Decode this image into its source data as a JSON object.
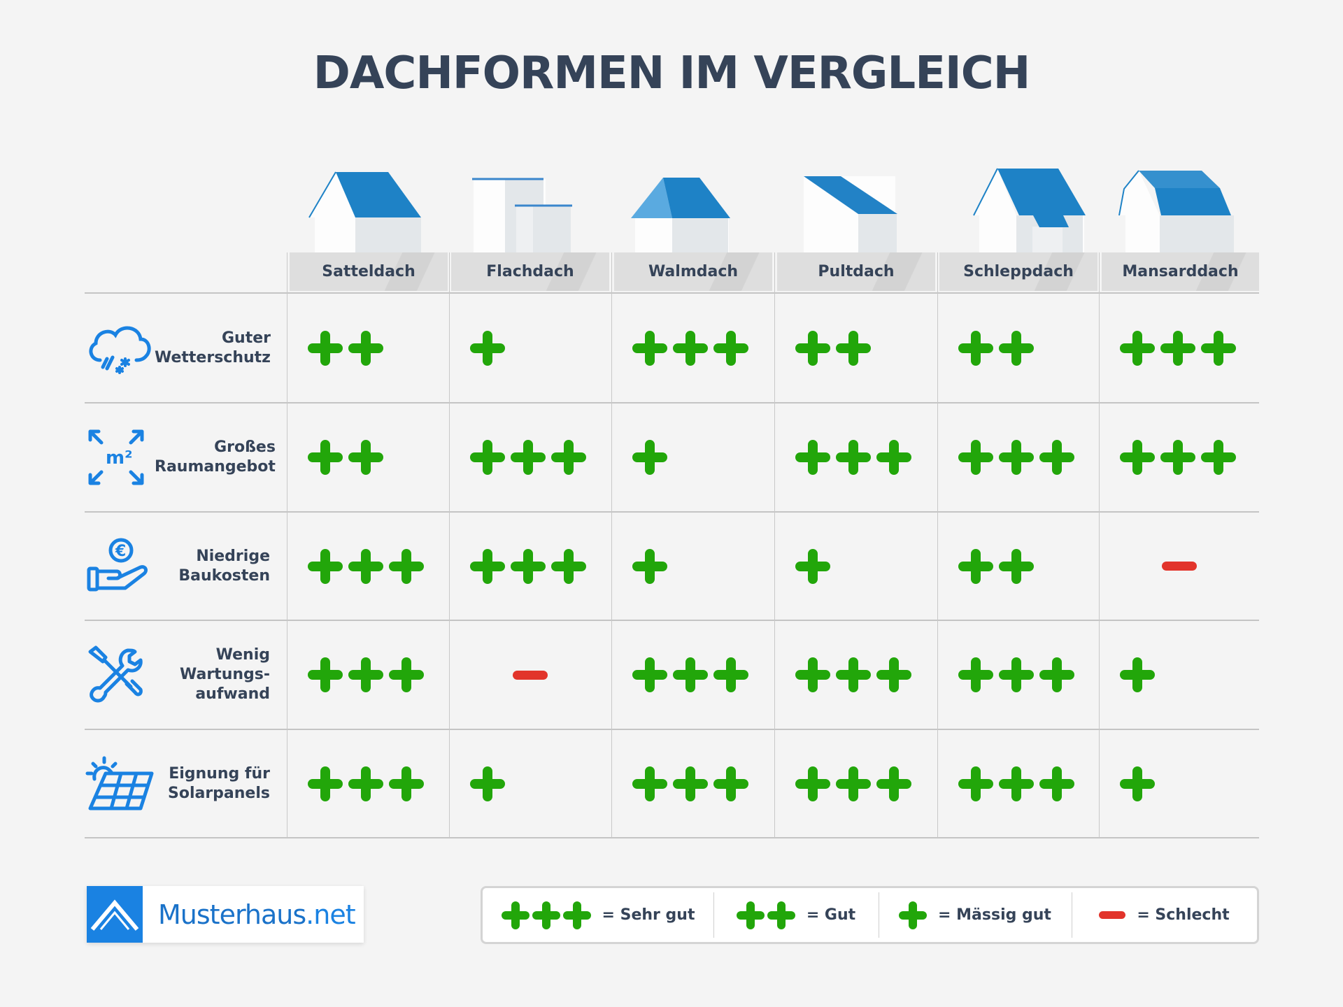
{
  "title": "DACHFORMEN IM VERGLEICH",
  "columns": [
    {
      "label": "Satteldach",
      "icon": "satteldach-house-icon"
    },
    {
      "label": "Flachdach",
      "icon": "flachdach-house-icon"
    },
    {
      "label": "Walmdach",
      "icon": "walmdach-house-icon"
    },
    {
      "label": "Pultdach",
      "icon": "pultdach-house-icon"
    },
    {
      "label": "Schleppdach",
      "icon": "schleppdach-house-icon"
    },
    {
      "label": "Mansarddach",
      "icon": "mansarddach-house-icon"
    }
  ],
  "rows": [
    {
      "label_line1": "Guter",
      "label_line2": "Wetterschutz",
      "label_line3": "",
      "icon": "weather-cloud-icon",
      "ratings": [
        2,
        1,
        3,
        2,
        2,
        3
      ]
    },
    {
      "label_line1": "Großes",
      "label_line2": "Raumangebot",
      "label_line3": "",
      "icon": "m2-expand-icon",
      "ratings": [
        2,
        3,
        1,
        3,
        3,
        3
      ]
    },
    {
      "label_line1": "Niedrige",
      "label_line2": "Baukosten",
      "label_line3": "",
      "icon": "hand-euro-icon",
      "ratings": [
        3,
        3,
        1,
        1,
        2,
        -1
      ]
    },
    {
      "label_line1": "Wenig",
      "label_line2": "Wartungs-",
      "label_line3": "aufwand",
      "icon": "tools-icon",
      "ratings": [
        3,
        -1,
        3,
        3,
        3,
        1
      ]
    },
    {
      "label_line1": "Eignung für",
      "label_line2": "Solarpanels",
      "label_line3": "",
      "icon": "solar-panel-icon",
      "ratings": [
        3,
        1,
        3,
        3,
        3,
        1
      ]
    }
  ],
  "legend": [
    {
      "symbol": "+++",
      "count": 3,
      "label": "= Sehr gut"
    },
    {
      "symbol": "++",
      "count": 2,
      "label": "= Gut"
    },
    {
      "symbol": "+",
      "count": 1,
      "label": "= Mässig gut"
    },
    {
      "symbol": "-",
      "count": -1,
      "label": "= Schlecht"
    }
  ],
  "logo": {
    "brand": "Musterhaus",
    "tld": ".net"
  },
  "colors": {
    "accent_blue": "#1e82c6",
    "plus_green": "#22a60a",
    "minus_red": "#e2342b",
    "text": "#354358",
    "background": "#f4f4f4"
  },
  "chart_data": {
    "type": "table",
    "title": "DACHFORMEN IM VERGLEICH",
    "categories": [
      "Satteldach",
      "Flachdach",
      "Walmdach",
      "Pultdach",
      "Schleppdach",
      "Mansarddach"
    ],
    "scale": {
      "3": "+++ Sehr gut",
      "2": "++ Gut",
      "1": "+ Mässig gut",
      "-1": "- Schlecht"
    },
    "series": [
      {
        "name": "Guter Wetterschutz",
        "values": [
          2,
          1,
          3,
          2,
          2,
          3
        ]
      },
      {
        "name": "Großes Raumangebot",
        "values": [
          2,
          3,
          1,
          3,
          3,
          3
        ]
      },
      {
        "name": "Niedrige Baukosten",
        "values": [
          3,
          3,
          1,
          1,
          2,
          -1
        ]
      },
      {
        "name": "Wenig Wartungsaufwand",
        "values": [
          3,
          -1,
          3,
          3,
          3,
          1
        ]
      },
      {
        "name": "Eignung für Solarpanels",
        "values": [
          3,
          1,
          3,
          3,
          3,
          1
        ]
      }
    ],
    "legend_position": "bottom-right",
    "grid": true
  }
}
